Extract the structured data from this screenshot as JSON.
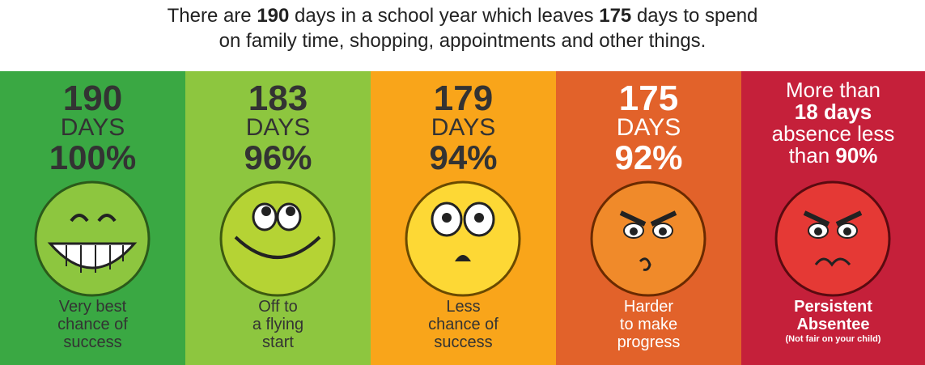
{
  "header": {
    "line1": [
      "There are ",
      "190",
      " days in a school year which leaves ",
      "175",
      " days to spend"
    ],
    "line2": "on family time, shopping, appointments and other things."
  },
  "panels": [
    {
      "days": "190",
      "days_label": "DAYS",
      "percent": "100%",
      "caption": [
        "Very best",
        "chance of",
        "success"
      ]
    },
    {
      "days": "183",
      "days_label": "DAYS",
      "percent": "96%",
      "caption": [
        "Off to",
        "a flying",
        "start"
      ]
    },
    {
      "days": "179",
      "days_label": "DAYS",
      "percent": "94%",
      "caption": [
        "Less",
        "chance of",
        "success"
      ]
    },
    {
      "days": "175",
      "days_label": "DAYS",
      "percent": "92%",
      "caption": [
        "Harder",
        "to make",
        "progress"
      ]
    },
    {
      "heading": [
        "More than",
        "18 days",
        "absence less",
        "than ",
        "90%"
      ],
      "caption": [
        "Persistent",
        "Absentee",
        "(Not fair on your child)"
      ]
    }
  ]
}
